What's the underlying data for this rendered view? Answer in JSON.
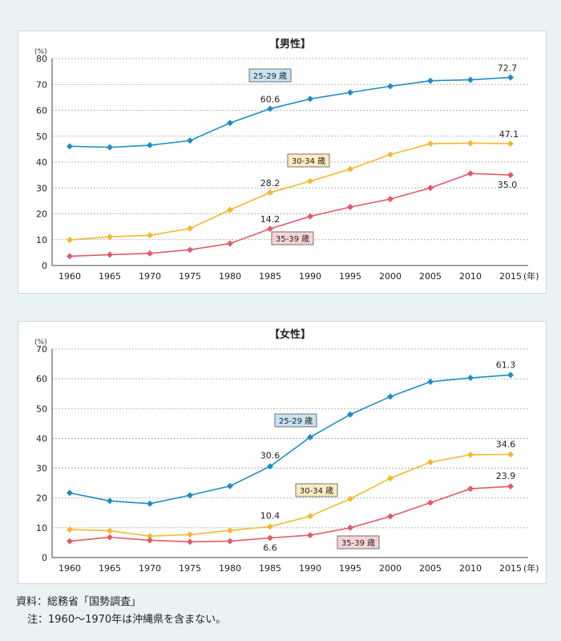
{
  "source_text": "資料：総務省「国勢調査」",
  "note_text": "注：1960～1970年は沖縄県を含まない。",
  "colors": {
    "s25": "#1d8fc0",
    "s30": "#f2b92e",
    "s35": "#e25a6a",
    "label_bg_25": "#c9e2f1",
    "label_bg_30": "#fcebc2",
    "label_bg_35": "#f7d3d6"
  },
  "chart_data": [
    {
      "type": "line",
      "title": "【男性】",
      "ylabel": "(%)",
      "xlabel": "(年)",
      "x": [
        "1960",
        "1965",
        "1970",
        "1975",
        "1980",
        "1985",
        "1990",
        "1995",
        "2000",
        "2005",
        "2010",
        "2015"
      ],
      "ylim": [
        0,
        80
      ],
      "yticks": [
        0,
        10,
        20,
        30,
        40,
        50,
        60,
        70,
        80
      ],
      "grid": true,
      "series": [
        {
          "name": "25-29 歳",
          "values": [
            46.1,
            45.7,
            46.5,
            48.3,
            55.1,
            60.6,
            64.4,
            66.9,
            69.3,
            71.4,
            71.8,
            72.7
          ]
        },
        {
          "name": "30-34 歳",
          "values": [
            9.9,
            11.1,
            11.7,
            14.3,
            21.5,
            28.2,
            32.6,
            37.3,
            42.9,
            47.1,
            47.3,
            47.1
          ]
        },
        {
          "name": "35-39 歳",
          "values": [
            3.6,
            4.2,
            4.7,
            6.1,
            8.5,
            14.2,
            19.0,
            22.6,
            25.7,
            30.0,
            35.6,
            35.0
          ]
        }
      ],
      "annotations": [
        {
          "series": 0,
          "index": 5,
          "text": "60.6"
        },
        {
          "series": 0,
          "index": 11,
          "text": "72.7"
        },
        {
          "series": 1,
          "index": 5,
          "text": "28.2"
        },
        {
          "series": 1,
          "index": 11,
          "text": "47.1"
        },
        {
          "series": 2,
          "index": 5,
          "text": "14.2"
        },
        {
          "series": 2,
          "index": 11,
          "text": "35.0"
        }
      ]
    },
    {
      "type": "line",
      "title": "【女性】",
      "ylabel": "(%)",
      "xlabel": "(年)",
      "x": [
        "1960",
        "1965",
        "1970",
        "1975",
        "1980",
        "1985",
        "1990",
        "1995",
        "2000",
        "2005",
        "2010",
        "2015"
      ],
      "ylim": [
        0,
        70
      ],
      "yticks": [
        0,
        10,
        20,
        30,
        40,
        50,
        60,
        70
      ],
      "grid": true,
      "series": [
        {
          "name": "25-29 歳",
          "values": [
            21.7,
            19.0,
            18.1,
            20.9,
            24.0,
            30.6,
            40.4,
            48.0,
            54.0,
            59.0,
            60.3,
            61.3
          ]
        },
        {
          "name": "30-34 歳",
          "values": [
            9.4,
            9.0,
            7.2,
            7.7,
            9.1,
            10.4,
            13.9,
            19.7,
            26.6,
            32.0,
            34.5,
            34.6
          ]
        },
        {
          "name": "35-39 歳",
          "values": [
            5.5,
            6.8,
            5.8,
            5.3,
            5.5,
            6.6,
            7.5,
            10.0,
            13.8,
            18.4,
            23.1,
            23.9
          ]
        }
      ],
      "annotations": [
        {
          "series": 0,
          "index": 5,
          "text": "30.6"
        },
        {
          "series": 0,
          "index": 11,
          "text": "61.3"
        },
        {
          "series": 1,
          "index": 5,
          "text": "10.4"
        },
        {
          "series": 1,
          "index": 11,
          "text": "34.6"
        },
        {
          "series": 2,
          "index": 5,
          "text": "6.6"
        },
        {
          "series": 2,
          "index": 11,
          "text": "23.9"
        }
      ]
    }
  ]
}
